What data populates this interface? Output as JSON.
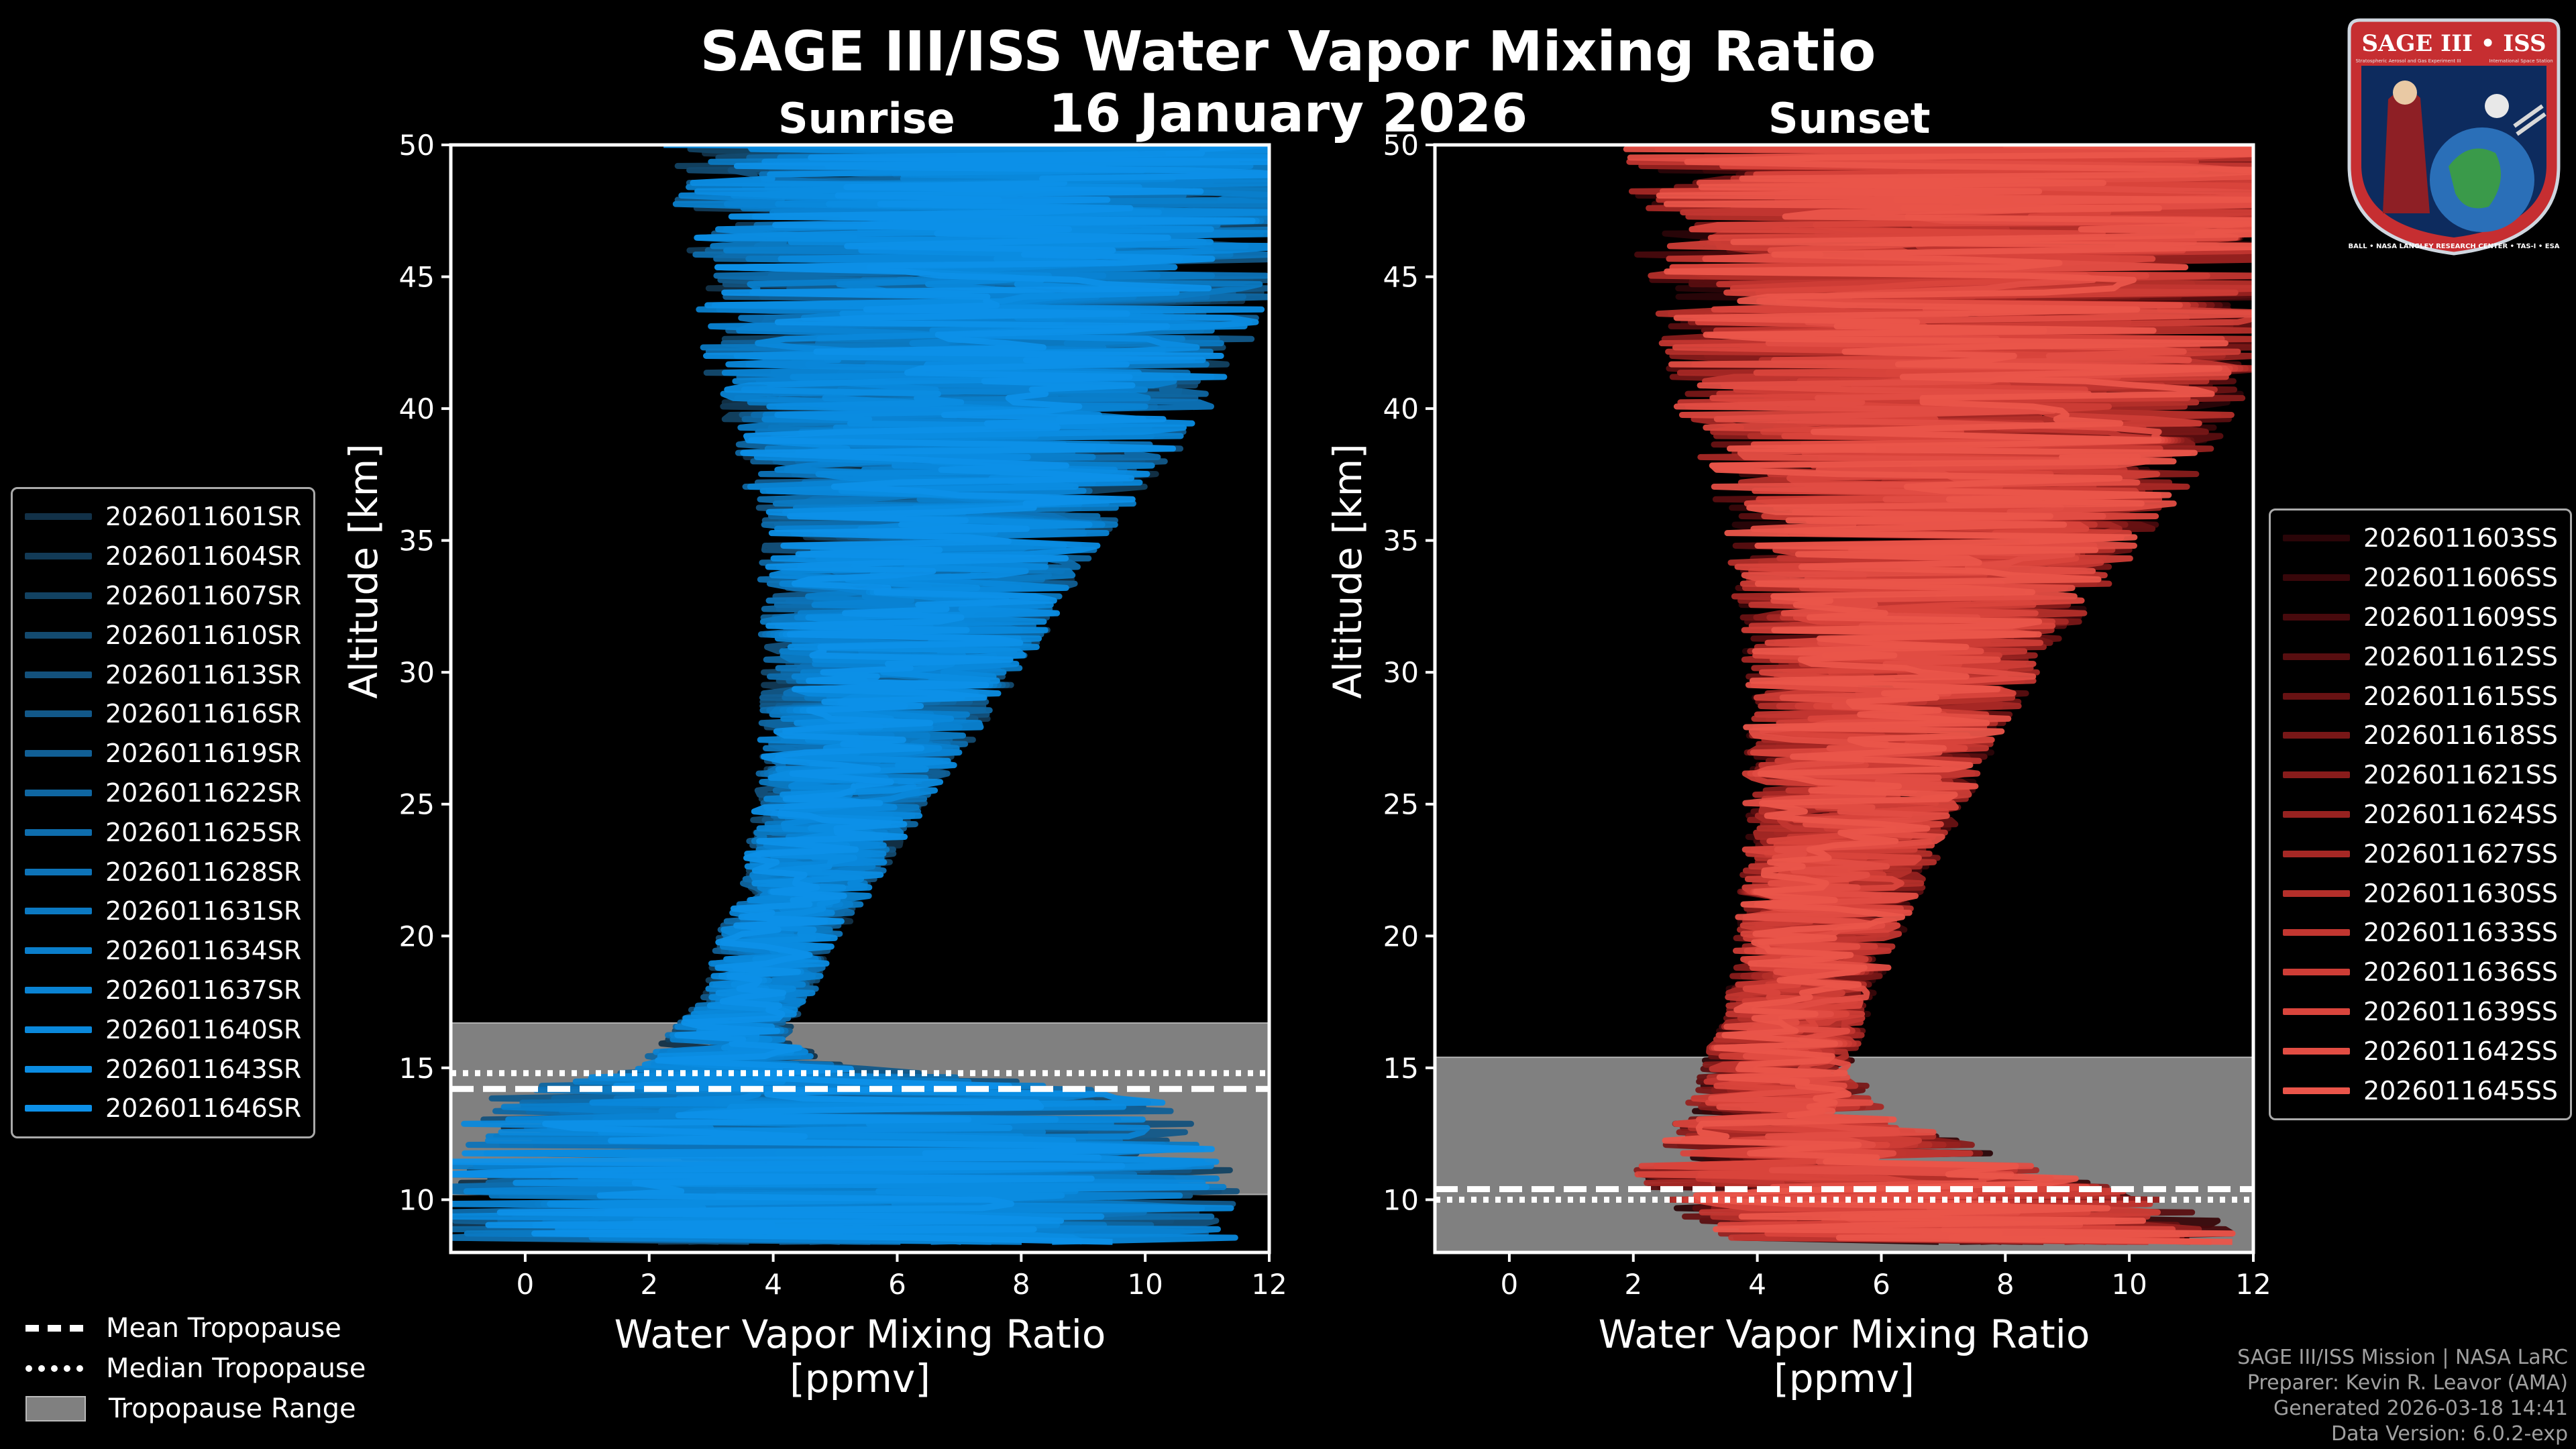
{
  "header": {
    "title": "SAGE III/ISS Water Vapor Mixing Ratio",
    "date": "16 January 2026",
    "sunrise_label": "Sunrise",
    "sunset_label": "Sunset"
  },
  "badge": {
    "text": "SAGE III • ISS",
    "subtext_left": "Stratospheric Aerosol and Gas Experiment III",
    "subtext_right": "International Space Station",
    "ring_text": "BALL • NASA LANGLEY RESEARCH CENTER • TAS-I • ESA"
  },
  "legend_sunrise": [
    {
      "label": "2026011601SR",
      "color": "#123148"
    },
    {
      "label": "2026011604SR",
      "color": "#123a56"
    },
    {
      "label": "2026011607SR",
      "color": "#124262"
    },
    {
      "label": "2026011610SR",
      "color": "#134a6f"
    },
    {
      "label": "2026011613SR",
      "color": "#13517c"
    },
    {
      "label": "2026011616SR",
      "color": "#125889"
    },
    {
      "label": "2026011619SR",
      "color": "#115f95"
    },
    {
      "label": "2026011622SR",
      "color": "#0f66a1"
    },
    {
      "label": "2026011625SR",
      "color": "#0e6dad"
    },
    {
      "label": "2026011628SR",
      "color": "#0d73b8"
    },
    {
      "label": "2026011631SR",
      "color": "#0b79c2"
    },
    {
      "label": "2026011634SR",
      "color": "#0a7ecb"
    },
    {
      "label": "2026011637SR",
      "color": "#0a83d3"
    },
    {
      "label": "2026011640SR",
      "color": "#0a88db"
    },
    {
      "label": "2026011643SR",
      "color": "#0b8ce2"
    },
    {
      "label": "2026011646SR",
      "color": "#0d90e8"
    }
  ],
  "legend_sunset": [
    {
      "label": "2026011603SS",
      "color": "#2a0508"
    },
    {
      "label": "2026011606SS",
      "color": "#38070a"
    },
    {
      "label": "2026011609SS",
      "color": "#480a0d"
    },
    {
      "label": "2026011612SS",
      "color": "#580e10"
    },
    {
      "label": "2026011615SS",
      "color": "#681213"
    },
    {
      "label": "2026011618SS",
      "color": "#781717"
    },
    {
      "label": "2026011621SS",
      "color": "#881c1b"
    },
    {
      "label": "2026011624SS",
      "color": "#972220"
    },
    {
      "label": "2026011627SS",
      "color": "#a62825"
    },
    {
      "label": "2026011630SS",
      "color": "#b42f2a"
    },
    {
      "label": "2026011633SS",
      "color": "#c23630"
    },
    {
      "label": "2026011636SS",
      "color": "#ce3d36"
    },
    {
      "label": "2026011639SS",
      "color": "#d9453c"
    },
    {
      "label": "2026011642SS",
      "color": "#e24d43"
    },
    {
      "label": "2026011645SS",
      "color": "#ea554a"
    }
  ],
  "bottom_legend": {
    "mean": "Mean Tropopause",
    "median": "Median Tropopause",
    "range": "Tropopause Range"
  },
  "credits": {
    "line1": "SAGE III/ISS Mission | NASA LaRC",
    "line2": "Preparer: Kevin R. Leavor (AMA)",
    "line3": "Generated 2026-03-18 14:41",
    "line4": "Data Version: 6.0.2-exp"
  },
  "chart_data": [
    {
      "type": "line",
      "name": "Sunrise",
      "xlabel": "Water Vapor Mixing Ratio\n[ppmv]",
      "ylabel": "Altitude [km]",
      "xlim": [
        -1.2,
        12
      ],
      "ylim": [
        8,
        50
      ],
      "xticks": [
        0,
        2,
        4,
        6,
        8,
        10,
        12
      ],
      "yticks": [
        10,
        15,
        20,
        25,
        30,
        35,
        40,
        45,
        50
      ],
      "tropopause": {
        "mean": 14.2,
        "median": 14.8,
        "range": [
          10.2,
          16.7
        ]
      },
      "profile_envelope": {
        "altitude_km": [
          11,
          14,
          15,
          16,
          17,
          18,
          20,
          22,
          25,
          28,
          30,
          33,
          36,
          40,
          43,
          46,
          50
        ],
        "center_ppmv": [
          5.0,
          4.8,
          3.6,
          3.2,
          3.5,
          3.8,
          4.1,
          4.6,
          5.1,
          5.6,
          5.9,
          6.3,
          6.7,
          7.1,
          7.3,
          7.6,
          7.8
        ],
        "spread_ppmv": [
          6.5,
          5.5,
          1.8,
          1.0,
          0.9,
          0.9,
          1.0,
          1.1,
          1.4,
          1.8,
          2.1,
          2.5,
          3.0,
          4.0,
          4.6,
          5.0,
          5.6
        ]
      },
      "series_count": 16
    },
    {
      "type": "line",
      "name": "Sunset",
      "xlabel": "Water Vapor Mixing Ratio\n[ppmv]",
      "ylabel": "Altitude [km]",
      "xlim": [
        -1.2,
        12
      ],
      "ylim": [
        8,
        50
      ],
      "xticks": [
        0,
        2,
        4,
        6,
        8,
        10,
        12
      ],
      "yticks": [
        10,
        15,
        20,
        25,
        30,
        35,
        40,
        45,
        50
      ],
      "tropopause": {
        "mean": 10.4,
        "median": 10.0,
        "range": [
          8.0,
          15.4
        ]
      },
      "profile_envelope": {
        "altitude_km": [
          9,
          11,
          13,
          15,
          17,
          19,
          21,
          24,
          27,
          30,
          33,
          36,
          40,
          43,
          46,
          50
        ],
        "center_ppmv": [
          7.5,
          5.5,
          4.5,
          4.3,
          4.6,
          4.9,
          5.1,
          5.5,
          5.8,
          6.2,
          6.6,
          7.0,
          7.3,
          7.5,
          7.6,
          7.8
        ],
        "spread_ppmv": [
          4.5,
          3.5,
          1.8,
          1.2,
          1.2,
          1.3,
          1.4,
          1.7,
          2.0,
          2.4,
          3.0,
          3.6,
          4.6,
          5.2,
          5.6,
          6.0
        ]
      },
      "series_count": 15
    }
  ]
}
